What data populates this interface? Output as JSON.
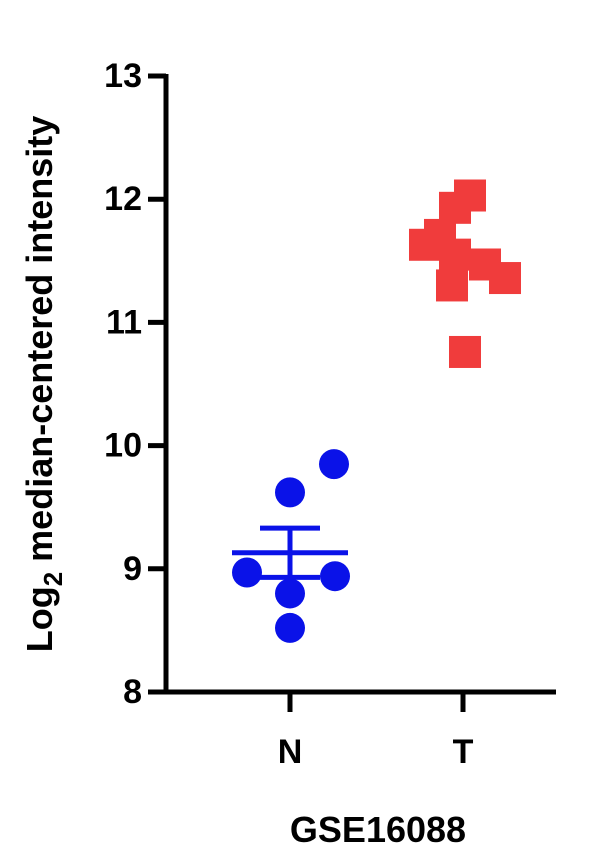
{
  "chart_data": {
    "type": "scatter",
    "ylabel": [
      "Log",
      "2",
      " median-centered intensity"
    ],
    "xlabel": "GSE16088",
    "categories": [
      "N",
      "T"
    ],
    "ylim": [
      8,
      13
    ],
    "yticks": [
      8,
      9,
      10,
      11,
      12,
      13
    ],
    "series": [
      {
        "color": "#0a12e8",
        "marker": "circle",
        "values": [
          9.62,
          9.85,
          8.97,
          8.94,
          8.8,
          8.52
        ],
        "mean": 9.13,
        "sem": 0.2
      },
      {
        "color": "#f03c3c",
        "marker": "square",
        "values": [
          12.03,
          11.93,
          11.71,
          11.63,
          11.55,
          11.47,
          11.36,
          11.3,
          10.76
        ]
      }
    ]
  }
}
